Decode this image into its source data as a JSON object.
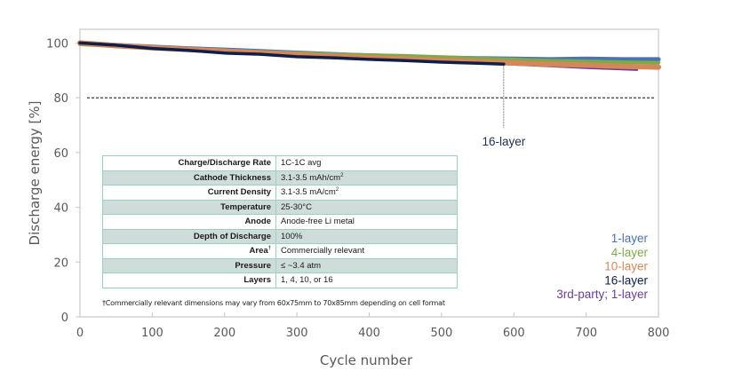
{
  "chart_data": {
    "type": "line",
    "title": "",
    "xlabel": "Cycle number",
    "ylabel": "Discharge energy [%]",
    "xlim": [
      0,
      800
    ],
    "ylim": [
      0,
      105
    ],
    "x_ticks": [
      0,
      100,
      200,
      300,
      400,
      500,
      600,
      700,
      800
    ],
    "y_ticks": [
      0,
      20,
      40,
      60,
      80,
      100
    ],
    "grid": false,
    "reference_line": {
      "y": 80,
      "style": "dashed",
      "color": "#222222"
    },
    "legend_position": "bottom-right",
    "series": [
      {
        "name": "1-layer",
        "color": "#4a72b8",
        "x": [
          0,
          50,
          100,
          150,
          200,
          250,
          300,
          350,
          400,
          450,
          500,
          550,
          600,
          650,
          700,
          750,
          800
        ],
        "y": [
          100,
          99.2,
          98.6,
          98.0,
          97.5,
          97.0,
          96.4,
          95.9,
          95.4,
          95.0,
          94.6,
          94.4,
          94.2,
          94.0,
          94.2,
          94.0,
          94.0
        ]
      },
      {
        "name": "4-layer",
        "color": "#7aab45",
        "x": [
          0,
          50,
          100,
          150,
          200,
          250,
          300,
          350,
          400,
          450,
          500,
          550,
          600,
          650,
          700,
          750,
          800
        ],
        "y": [
          99.5,
          98.8,
          98.3,
          97.8,
          97.3,
          96.8,
          96.3,
          95.9,
          95.6,
          95.3,
          94.9,
          94.4,
          94.0,
          93.6,
          93.3,
          93.0,
          92.8
        ]
      },
      {
        "name": "10-layer",
        "color": "#d4885a",
        "x": [
          0,
          50,
          100,
          150,
          200,
          250,
          300,
          350,
          400,
          450,
          500,
          550,
          600,
          650,
          700,
          750,
          800
        ],
        "y": [
          100,
          99.0,
          98.3,
          97.6,
          97.0,
          96.4,
          95.8,
          95.2,
          94.7,
          94.2,
          93.7,
          93.2,
          92.7,
          92.3,
          91.9,
          91.5,
          91.2
        ]
      },
      {
        "name": "16-layer",
        "color": "#0f1f4a",
        "x": [
          0,
          50,
          100,
          150,
          200,
          250,
          300,
          350,
          400,
          450,
          500,
          550,
          586
        ],
        "y": [
          100,
          99.2,
          98.0,
          97.3,
          96.3,
          95.9,
          95.0,
          94.6,
          94.0,
          93.6,
          93.0,
          92.6,
          92.3
        ]
      },
      {
        "name": "3rd-party; 1-layer",
        "color": "#6a3e98",
        "x": [
          0,
          100,
          200,
          300,
          400,
          500,
          600,
          650,
          700,
          770
        ],
        "y": [
          100,
          98.6,
          97.2,
          95.9,
          94.6,
          93.4,
          92.2,
          91.6,
          91.0,
          90.3
        ]
      }
    ],
    "annotations": [
      {
        "text": "16-layer",
        "x": 586,
        "y": 92.3
      }
    ]
  },
  "table": {
    "rows": [
      {
        "label": "Charge/Discharge Rate",
        "value": "1C-1C avg"
      },
      {
        "label": "Cathode Thickness",
        "value": "3.1-3.5 mAh/cm",
        "value_sup": "2"
      },
      {
        "label": "Current Density",
        "value": "3.1-3.5 mA/cm",
        "value_sup": "2"
      },
      {
        "label": "Temperature",
        "value": "25-30°C"
      },
      {
        "label": "Anode",
        "value": "Anode-free Li metal"
      },
      {
        "label": "Depth of Discharge",
        "value": "100%"
      },
      {
        "label": "Area",
        "label_sup": "†",
        "value": "Commercially relevant"
      },
      {
        "label": "Pressure",
        "value": "≤ ~3.4 atm"
      },
      {
        "label": "Layers",
        "value": "1, 4, 10, or 16"
      }
    ]
  },
  "footnote": "†Commercially relevant dimensions may vary from 60x75mm to 70x85mm depending on cell format"
}
